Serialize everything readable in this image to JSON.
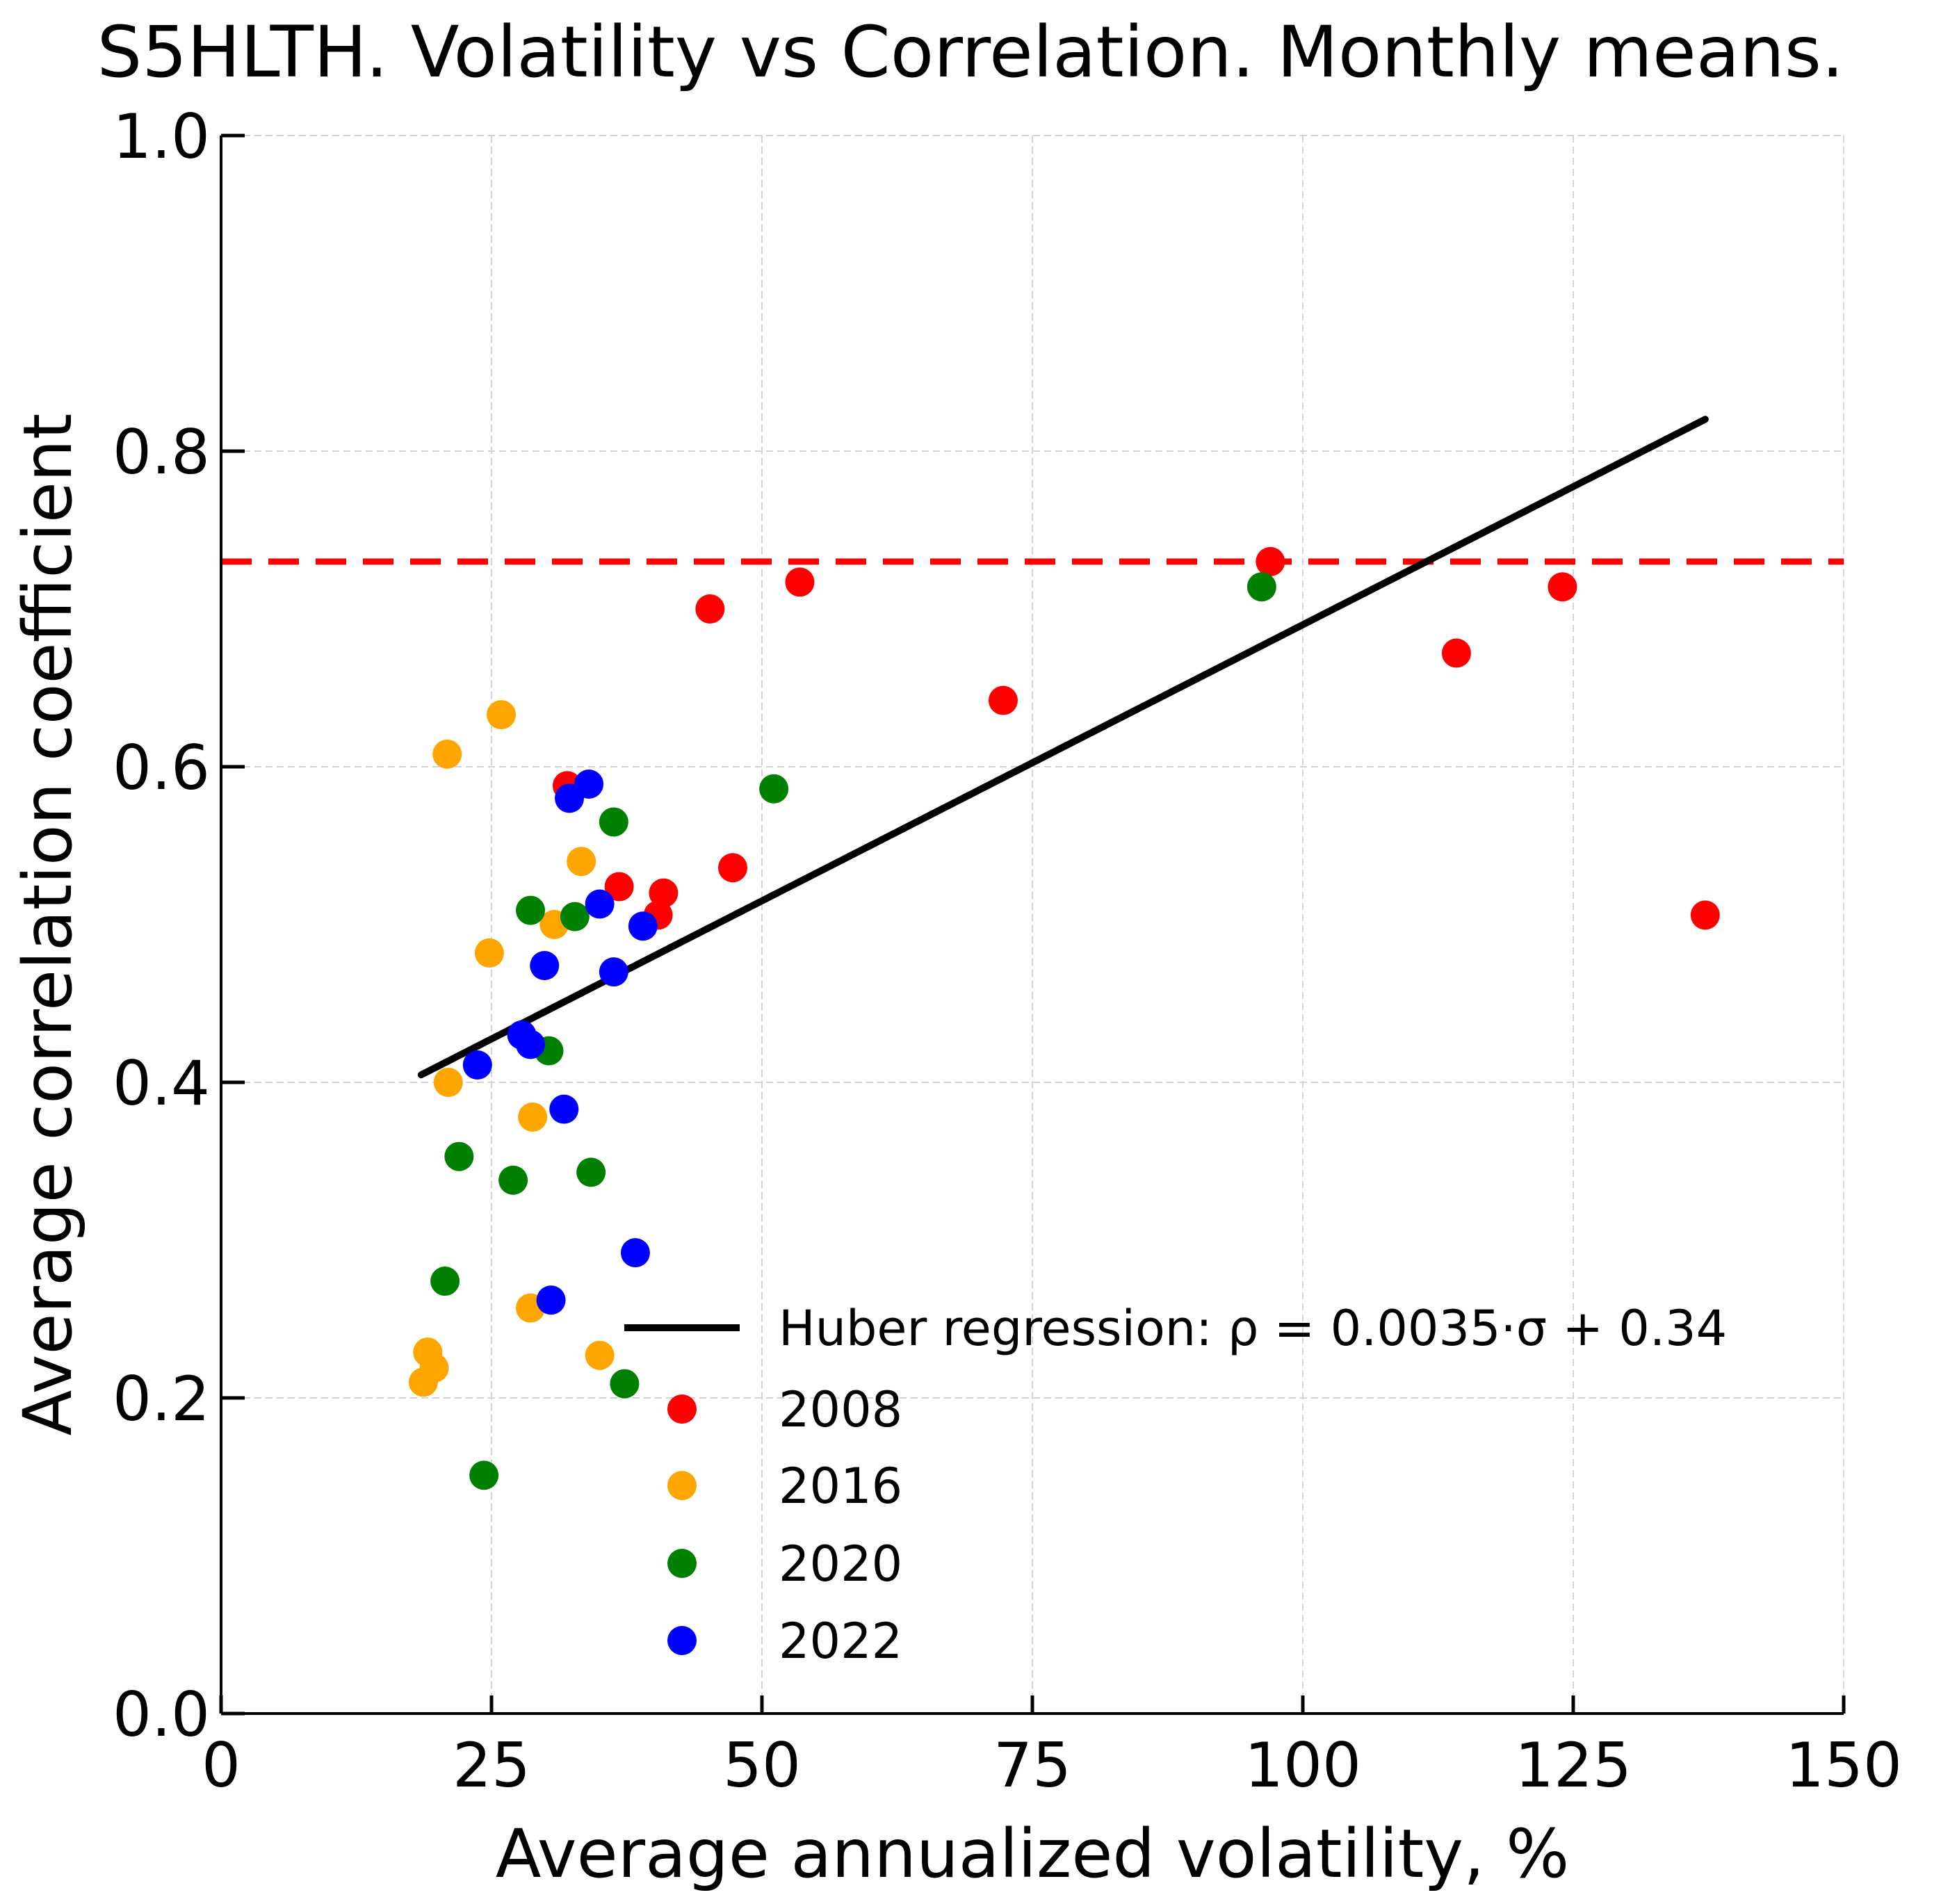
{
  "chart_data": {
    "type": "scatter",
    "title": "S5HLTH. Volatility vs Correlation. Monthly means.",
    "xlabel": "Average annualized volatility, %",
    "ylabel": "Average correlation coefficient",
    "xlim": [
      0,
      150
    ],
    "ylim": [
      0.0,
      1.0
    ],
    "xticks": [
      "0",
      "25",
      "50",
      "75",
      "100",
      "125",
      "150"
    ],
    "yticks": [
      "0.0",
      "0.2",
      "0.4",
      "0.6",
      "0.8",
      "1.0"
    ],
    "grid": true,
    "legend_position": "lower-center",
    "reference_line": {
      "y": 0.73,
      "color": "#ff0000",
      "style": "dashed"
    },
    "regression": {
      "label": "Huber regression: ρ = 0.0035·σ + 0.34",
      "slope": 0.0035,
      "intercept": 0.34,
      "x_range": [
        18.5,
        137.2
      ],
      "color": "#000000"
    },
    "series": [
      {
        "name": "2008",
        "color": "#ff0000",
        "points": [
          [
            97.0,
            0.73
          ],
          [
            53.5,
            0.717
          ],
          [
            45.2,
            0.7
          ],
          [
            124.0,
            0.714
          ],
          [
            114.2,
            0.672
          ],
          [
            72.3,
            0.642
          ],
          [
            47.3,
            0.536
          ],
          [
            40.9,
            0.52
          ],
          [
            36.8,
            0.524
          ],
          [
            40.4,
            0.506
          ],
          [
            32.0,
            0.588
          ],
          [
            137.2,
            0.506
          ]
        ]
      },
      {
        "name": "2016",
        "color": "#ffa500",
        "points": [
          [
            25.9,
            0.633
          ],
          [
            20.9,
            0.608
          ],
          [
            33.3,
            0.54
          ],
          [
            30.8,
            0.5
          ],
          [
            24.8,
            0.482
          ],
          [
            21.0,
            0.4
          ],
          [
            28.8,
            0.378
          ],
          [
            28.6,
            0.257
          ],
          [
            35.0,
            0.227
          ],
          [
            19.1,
            0.229
          ],
          [
            19.7,
            0.219
          ],
          [
            18.7,
            0.21
          ]
        ]
      },
      {
        "name": "2020",
        "color": "#008000",
        "points": [
          [
            96.2,
            0.714
          ],
          [
            51.1,
            0.586
          ],
          [
            36.3,
            0.565
          ],
          [
            28.6,
            0.509
          ],
          [
            32.7,
            0.505
          ],
          [
            30.3,
            0.42
          ],
          [
            22.0,
            0.353
          ],
          [
            27.0,
            0.338
          ],
          [
            34.2,
            0.343
          ],
          [
            20.7,
            0.274
          ],
          [
            37.3,
            0.209
          ],
          [
            24.3,
            0.151
          ]
        ]
      },
      {
        "name": "2022",
        "color": "#0000ff",
        "points": [
          [
            34.0,
            0.589
          ],
          [
            32.2,
            0.58
          ],
          [
            35.0,
            0.513
          ],
          [
            39.0,
            0.499
          ],
          [
            29.9,
            0.474
          ],
          [
            36.3,
            0.47
          ],
          [
            27.8,
            0.43
          ],
          [
            28.6,
            0.424
          ],
          [
            23.7,
            0.411
          ],
          [
            31.7,
            0.383
          ],
          [
            38.3,
            0.292
          ],
          [
            30.5,
            0.262
          ]
        ]
      }
    ]
  }
}
